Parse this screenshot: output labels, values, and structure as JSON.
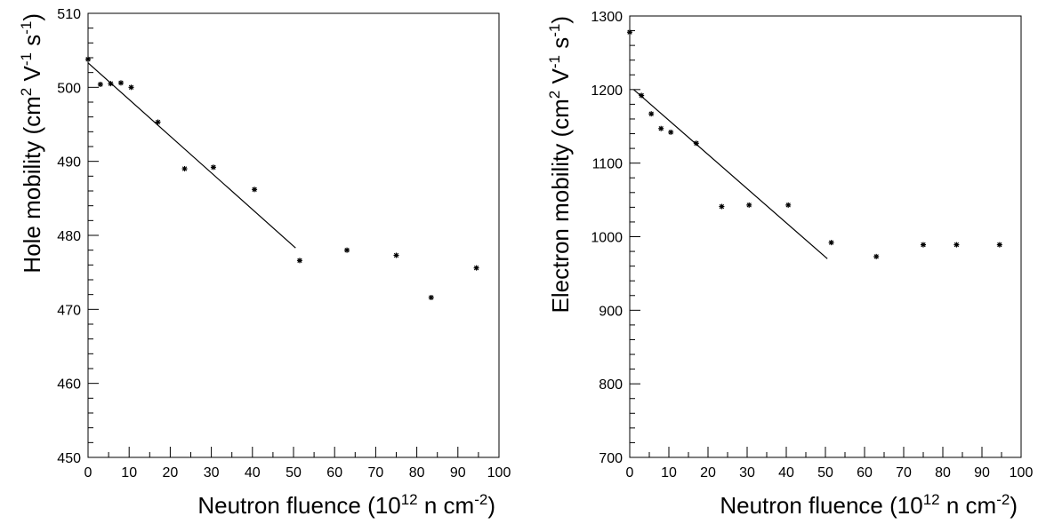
{
  "chart_data": [
    {
      "type": "scatter",
      "title": "",
      "xlabel_main": "Neutron fluence (10",
      "xlabel_sup1": "12",
      "xlabel_mid": " n cm",
      "xlabel_sup2": "-2",
      "xlabel_end": ")",
      "ylabel_main": "Hole mobility (cm",
      "ylabel_sup1": "2",
      "ylabel_mid1": " V",
      "ylabel_sup2": "-1",
      "ylabel_mid2": " s",
      "ylabel_sup3": "-1",
      "ylabel_end": ")",
      "xlim": [
        0,
        100
      ],
      "ylim": [
        450,
        510
      ],
      "xticks": [
        0,
        10,
        20,
        30,
        40,
        50,
        60,
        70,
        80,
        90,
        100
      ],
      "yticks": [
        450,
        460,
        470,
        480,
        490,
        500,
        510
      ],
      "grid": false,
      "series": [
        {
          "points": [
            [
              0,
              503.8
            ],
            [
              3,
              500.4
            ],
            [
              5.5,
              500.5
            ],
            [
              8,
              500.6
            ],
            [
              10.5,
              500.0
            ],
            [
              17,
              495.3
            ],
            [
              23.5,
              489.0
            ],
            [
              30.5,
              489.2
            ],
            [
              40.5,
              486.2
            ],
            [
              51.5,
              476.6
            ],
            [
              63,
              478.0
            ],
            [
              75,
              477.3
            ],
            [
              83.5,
              471.6
            ],
            [
              94.5,
              475.6
            ]
          ]
        }
      ],
      "fit_line": [
        [
          0,
          503.3
        ],
        [
          50.5,
          478.3
        ]
      ]
    },
    {
      "type": "scatter",
      "title": "",
      "xlabel_main": "Neutron fluence (10",
      "xlabel_sup1": "12",
      "xlabel_mid": " n cm",
      "xlabel_sup2": "-2",
      "xlabel_end": ")",
      "ylabel_main": "Electron mobility (cm",
      "ylabel_sup1": "2",
      "ylabel_mid1": " V",
      "ylabel_sup2": "-1",
      "ylabel_mid2": " s",
      "ylabel_sup3": "-1",
      "ylabel_end": ")",
      "xlim": [
        0,
        100
      ],
      "ylim": [
        700,
        1300
      ],
      "xticks": [
        0,
        10,
        20,
        30,
        40,
        50,
        60,
        70,
        80,
        90,
        100
      ],
      "yticks": [
        700,
        800,
        900,
        1000,
        1100,
        1200,
        1300
      ],
      "grid": false,
      "series": [
        {
          "points": [
            [
              0,
              1278
            ],
            [
              3,
              1192
            ],
            [
              5.5,
              1167
            ],
            [
              8,
              1147
            ],
            [
              10.5,
              1142
            ],
            [
              17,
              1127
            ],
            [
              23.5,
              1041
            ],
            [
              30.5,
              1043
            ],
            [
              40.5,
              1043
            ],
            [
              51.5,
              992
            ],
            [
              63,
              973
            ],
            [
              75,
              989
            ],
            [
              83.5,
              989
            ],
            [
              94.5,
              989
            ]
          ]
        }
      ],
      "fit_line": [
        [
          1,
          1200
        ],
        [
          50.5,
          970
        ]
      ]
    }
  ]
}
